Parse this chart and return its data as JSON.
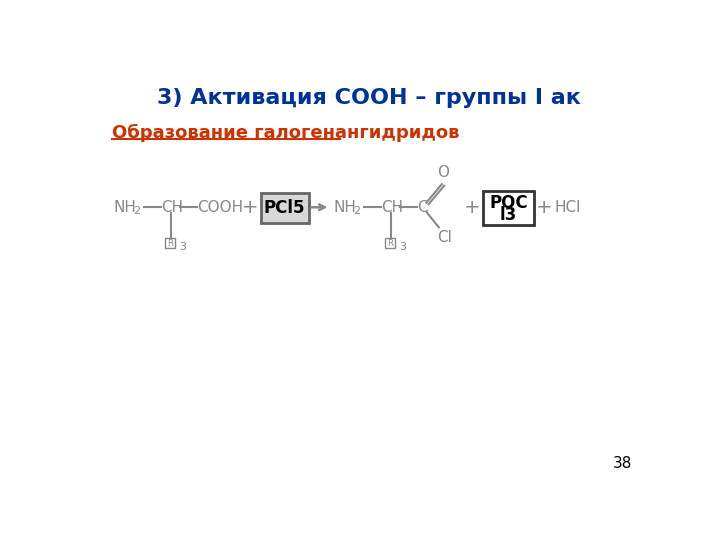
{
  "title": "3) Активация СООН – группы I ак",
  "subtitle": "Образование галогенангидридов",
  "title_color": "#003399",
  "subtitle_color": "#cc3300",
  "bg_color": "#ffffff",
  "page_number": "38",
  "fig_width": 7.2,
  "fig_height": 5.4,
  "dpi": 100
}
